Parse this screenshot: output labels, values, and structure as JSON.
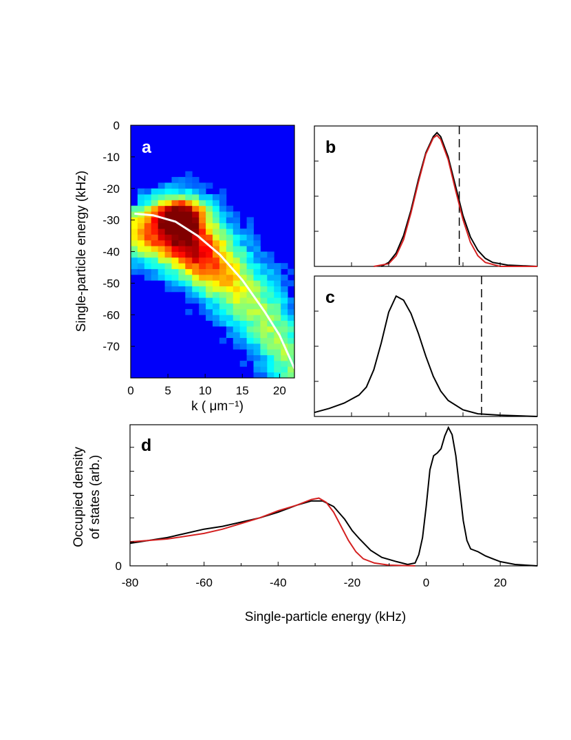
{
  "figure": {
    "panels": [
      "a",
      "b",
      "c",
      "d"
    ]
  },
  "chart_data": [
    {
      "panel": "a",
      "type": "heatmap",
      "xlabel": "k ( μm⁻¹)",
      "ylabel": "Single-particle energy (kHz)",
      "xlim": [
        0,
        22
      ],
      "ylim": [
        -80,
        0
      ],
      "xticks": [
        0,
        5,
        10,
        15,
        20
      ],
      "yticks": [
        0,
        -10,
        -20,
        -30,
        -40,
        -50,
        -60,
        -70
      ],
      "colormap": "jet",
      "grid": false,
      "hotspot": {
        "k": 7,
        "energy_khz": -28
      },
      "dispersion_curve": {
        "color": "#ffffff",
        "points": [
          [
            0.5,
            -28
          ],
          [
            3,
            -28.5
          ],
          [
            6,
            -30.5
          ],
          [
            9,
            -35
          ],
          [
            12,
            -41
          ],
          [
            15,
            -49
          ],
          [
            18,
            -59
          ],
          [
            20,
            -66.5
          ],
          [
            22,
            -77
          ]
        ]
      }
    },
    {
      "panel": "b",
      "type": "line",
      "xlim": [
        -10,
        20
      ],
      "ylim": [
        0,
        1.05
      ],
      "dashed_line_x": 9.5,
      "series": [
        {
          "color": "#000000",
          "points": [
            [
              -1,
              0
            ],
            [
              0,
              0.03
            ],
            [
              1,
              0.1
            ],
            [
              2,
              0.23
            ],
            [
              3,
              0.42
            ],
            [
              4,
              0.65
            ],
            [
              5,
              0.85
            ],
            [
              6,
              0.97
            ],
            [
              6.5,
              1.0
            ],
            [
              7,
              0.97
            ],
            [
              8,
              0.82
            ],
            [
              9,
              0.6
            ],
            [
              10,
              0.38
            ],
            [
              11,
              0.22
            ],
            [
              12,
              0.12
            ],
            [
              13,
              0.06
            ],
            [
              14,
              0.03
            ],
            [
              16,
              0.01
            ],
            [
              20,
              0.0
            ]
          ]
        },
        {
          "color": "#d42020",
          "points": [
            [
              -2,
              0
            ],
            [
              0,
              0.02
            ],
            [
              1,
              0.08
            ],
            [
              2,
              0.2
            ],
            [
              3,
              0.4
            ],
            [
              4,
              0.63
            ],
            [
              5,
              0.84
            ],
            [
              6,
              0.96
            ],
            [
              6.5,
              0.98
            ],
            [
              7,
              0.95
            ],
            [
              8,
              0.8
            ],
            [
              9,
              0.57
            ],
            [
              10,
              0.35
            ],
            [
              11,
              0.18
            ],
            [
              12,
              0.08
            ],
            [
              13,
              0.03
            ],
            [
              15,
              0.0
            ],
            [
              20,
              0.0
            ]
          ]
        }
      ]
    },
    {
      "panel": "c",
      "type": "line",
      "xlim": [
        -10,
        20
      ],
      "ylim": [
        0,
        1.05
      ],
      "dashed_line_x": 12.5,
      "series": [
        {
          "color": "#000000",
          "points": [
            [
              -10,
              0.03
            ],
            [
              -8,
              0.06
            ],
            [
              -6,
              0.1
            ],
            [
              -4,
              0.16
            ],
            [
              -3,
              0.22
            ],
            [
              -2,
              0.35
            ],
            [
              -1,
              0.55
            ],
            [
              0,
              0.78
            ],
            [
              1,
              0.9
            ],
            [
              2,
              0.87
            ],
            [
              3,
              0.77
            ],
            [
              4,
              0.62
            ],
            [
              5,
              0.45
            ],
            [
              6,
              0.3
            ],
            [
              7,
              0.19
            ],
            [
              8,
              0.12
            ],
            [
              10,
              0.05
            ],
            [
              12,
              0.02
            ],
            [
              15,
              0.01
            ],
            [
              20,
              0.0
            ]
          ]
        }
      ]
    },
    {
      "panel": "d",
      "type": "line",
      "xlabel": "Single-particle energy (kHz)",
      "ylabel": "Occupied density of states (arb.)",
      "ylabel_lines": [
        "Occupied density",
        "of states (arb.)"
      ],
      "xlim": [
        -80,
        30
      ],
      "ylim": [
        0,
        1
      ],
      "xticks": [
        -80,
        -60,
        -40,
        -20,
        0,
        20
      ],
      "ytick_labels": [
        "0"
      ],
      "series": [
        {
          "color": "#000000",
          "points": [
            [
              -80,
              0.16
            ],
            [
              -75,
              0.18
            ],
            [
              -70,
              0.2
            ],
            [
              -65,
              0.23
            ],
            [
              -60,
              0.26
            ],
            [
              -55,
              0.28
            ],
            [
              -50,
              0.31
            ],
            [
              -45,
              0.34
            ],
            [
              -40,
              0.38
            ],
            [
              -35,
              0.43
            ],
            [
              -31,
              0.46
            ],
            [
              -28,
              0.46
            ],
            [
              -25,
              0.42
            ],
            [
              -22,
              0.33
            ],
            [
              -20,
              0.25
            ],
            [
              -18,
              0.19
            ],
            [
              -15,
              0.11
            ],
            [
              -12,
              0.06
            ],
            [
              -8,
              0.03
            ],
            [
              -5,
              0.01
            ],
            [
              -3,
              0.02
            ],
            [
              -2,
              0.08
            ],
            [
              -1,
              0.2
            ],
            [
              0,
              0.42
            ],
            [
              1,
              0.68
            ],
            [
              2,
              0.78
            ],
            [
              3,
              0.8
            ],
            [
              4,
              0.83
            ],
            [
              5,
              0.92
            ],
            [
              6,
              0.98
            ],
            [
              7,
              0.93
            ],
            [
              8,
              0.78
            ],
            [
              9,
              0.55
            ],
            [
              10,
              0.32
            ],
            [
              11,
              0.18
            ],
            [
              12,
              0.12
            ],
            [
              14,
              0.1
            ],
            [
              16,
              0.07
            ],
            [
              18,
              0.05
            ],
            [
              20,
              0.03
            ],
            [
              24,
              0.01
            ],
            [
              30,
              0.0
            ]
          ]
        },
        {
          "color": "#d42020",
          "points": [
            [
              -80,
              0.17
            ],
            [
              -75,
              0.18
            ],
            [
              -70,
              0.19
            ],
            [
              -65,
              0.21
            ],
            [
              -60,
              0.23
            ],
            [
              -55,
              0.26
            ],
            [
              -50,
              0.3
            ],
            [
              -45,
              0.34
            ],
            [
              -40,
              0.39
            ],
            [
              -35,
              0.43
            ],
            [
              -31,
              0.47
            ],
            [
              -29,
              0.48
            ],
            [
              -27,
              0.45
            ],
            [
              -25,
              0.38
            ],
            [
              -23,
              0.28
            ],
            [
              -21,
              0.18
            ],
            [
              -19,
              0.1
            ],
            [
              -17,
              0.05
            ],
            [
              -14,
              0.02
            ],
            [
              -10,
              0.005
            ],
            [
              -3,
              0.0
            ]
          ]
        }
      ]
    }
  ]
}
